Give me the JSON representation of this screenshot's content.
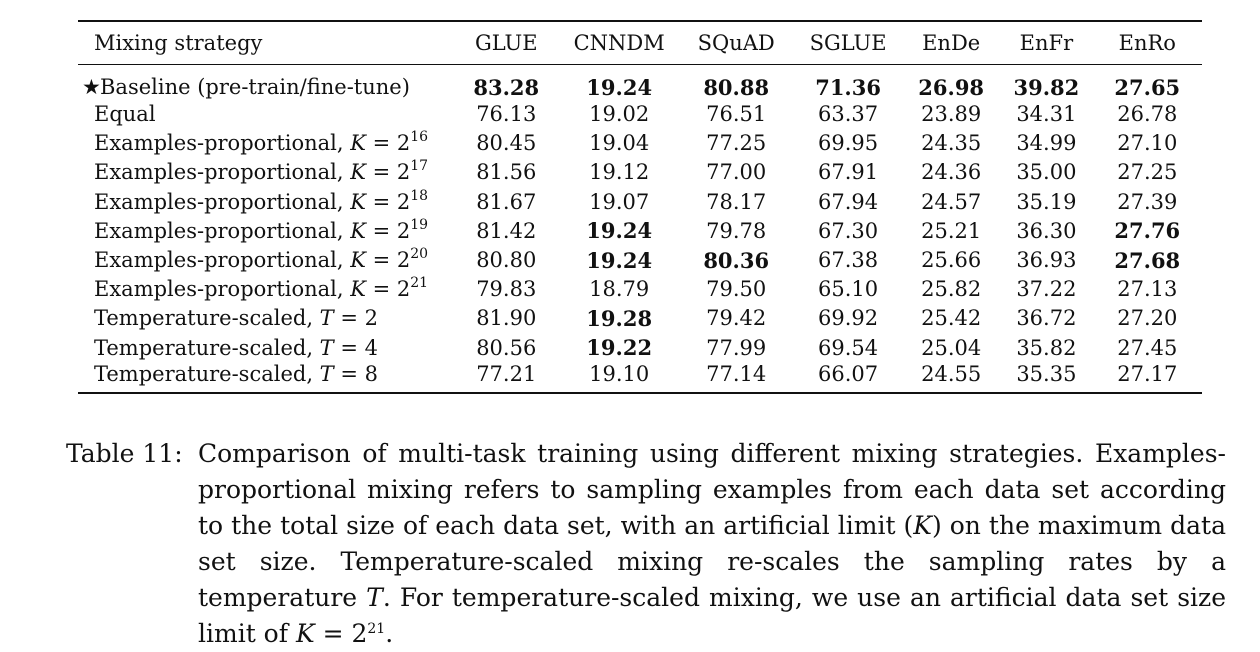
{
  "table": {
    "columns": [
      "Mixing strategy",
      "GLUE",
      "CNNDM",
      "SQuAD",
      "SGLUE",
      "EnDe",
      "EnFr",
      "EnRo"
    ],
    "rows": [
      {
        "star": "★",
        "prefix": "Baseline (pre-train/fine-tune)",
        "var": "",
        "eq": "",
        "base": "",
        "exp": "",
        "values": [
          "83.28",
          "19.24",
          "80.88",
          "71.36",
          "26.98",
          "39.82",
          "27.65"
        ],
        "bold": [
          true,
          true,
          true,
          true,
          true,
          true,
          true
        ]
      },
      {
        "star": "",
        "prefix": "Equal",
        "var": "",
        "eq": "",
        "base": "",
        "exp": "",
        "values": [
          "76.13",
          "19.02",
          "76.51",
          "63.37",
          "23.89",
          "34.31",
          "26.78"
        ],
        "bold": [
          false,
          false,
          false,
          false,
          false,
          false,
          false
        ]
      },
      {
        "star": "",
        "prefix": "Examples-proportional, ",
        "var": "K",
        "eq": " = ",
        "base": "2",
        "exp": "16",
        "values": [
          "80.45",
          "19.04",
          "77.25",
          "69.95",
          "24.35",
          "34.99",
          "27.10"
        ],
        "bold": [
          false,
          false,
          false,
          false,
          false,
          false,
          false
        ]
      },
      {
        "star": "",
        "prefix": "Examples-proportional, ",
        "var": "K",
        "eq": " = ",
        "base": "2",
        "exp": "17",
        "values": [
          "81.56",
          "19.12",
          "77.00",
          "67.91",
          "24.36",
          "35.00",
          "27.25"
        ],
        "bold": [
          false,
          false,
          false,
          false,
          false,
          false,
          false
        ]
      },
      {
        "star": "",
        "prefix": "Examples-proportional, ",
        "var": "K",
        "eq": " = ",
        "base": "2",
        "exp": "18",
        "values": [
          "81.67",
          "19.07",
          "78.17",
          "67.94",
          "24.57",
          "35.19",
          "27.39"
        ],
        "bold": [
          false,
          false,
          false,
          false,
          false,
          false,
          false
        ]
      },
      {
        "star": "",
        "prefix": "Examples-proportional, ",
        "var": "K",
        "eq": " = ",
        "base": "2",
        "exp": "19",
        "values": [
          "81.42",
          "19.24",
          "79.78",
          "67.30",
          "25.21",
          "36.30",
          "27.76"
        ],
        "bold": [
          false,
          true,
          false,
          false,
          false,
          false,
          true
        ]
      },
      {
        "star": "",
        "prefix": "Examples-proportional, ",
        "var": "K",
        "eq": " = ",
        "base": "2",
        "exp": "20",
        "values": [
          "80.80",
          "19.24",
          "80.36",
          "67.38",
          "25.66",
          "36.93",
          "27.68"
        ],
        "bold": [
          false,
          true,
          true,
          false,
          false,
          false,
          true
        ]
      },
      {
        "star": "",
        "prefix": "Examples-proportional, ",
        "var": "K",
        "eq": " = ",
        "base": "2",
        "exp": "21",
        "values": [
          "79.83",
          "18.79",
          "79.50",
          "65.10",
          "25.82",
          "37.22",
          "27.13"
        ],
        "bold": [
          false,
          false,
          false,
          false,
          false,
          false,
          false
        ]
      },
      {
        "star": "",
        "prefix": "Temperature-scaled, ",
        "var": "T",
        "eq": " = ",
        "base": "2",
        "exp": "",
        "values": [
          "81.90",
          "19.28",
          "79.42",
          "69.92",
          "25.42",
          "36.72",
          "27.20"
        ],
        "bold": [
          false,
          true,
          false,
          false,
          false,
          false,
          false
        ]
      },
      {
        "star": "",
        "prefix": "Temperature-scaled, ",
        "var": "T",
        "eq": " = ",
        "base": "4",
        "exp": "",
        "values": [
          "80.56",
          "19.22",
          "77.99",
          "69.54",
          "25.04",
          "35.82",
          "27.45"
        ],
        "bold": [
          false,
          true,
          false,
          false,
          false,
          false,
          false
        ]
      },
      {
        "star": "",
        "prefix": "Temperature-scaled, ",
        "var": "T",
        "eq": " = ",
        "base": "8",
        "exp": "",
        "values": [
          "77.21",
          "19.10",
          "77.14",
          "66.07",
          "24.55",
          "35.35",
          "27.17"
        ],
        "bold": [
          false,
          false,
          false,
          false,
          false,
          false,
          false
        ]
      }
    ]
  },
  "caption": {
    "label": "Table 11:",
    "text_1": "Comparison of multi-task training using different mixing strategies. Examples-proportional mixing refers to sampling examples from each data set according to the total size of each data set, with an artificial limit (",
    "var_1": "K",
    "text_2": ") on the maximum data set size. Temperature-scaled mixing re-scales the sampling rates by a temperature ",
    "var_2": "T",
    "text_3": ". For temperature-scaled mixing, we use an artificial data set size limit of ",
    "var_3": "K",
    "text_4": " = 2",
    "exp_4": "21",
    "text_5": "."
  }
}
